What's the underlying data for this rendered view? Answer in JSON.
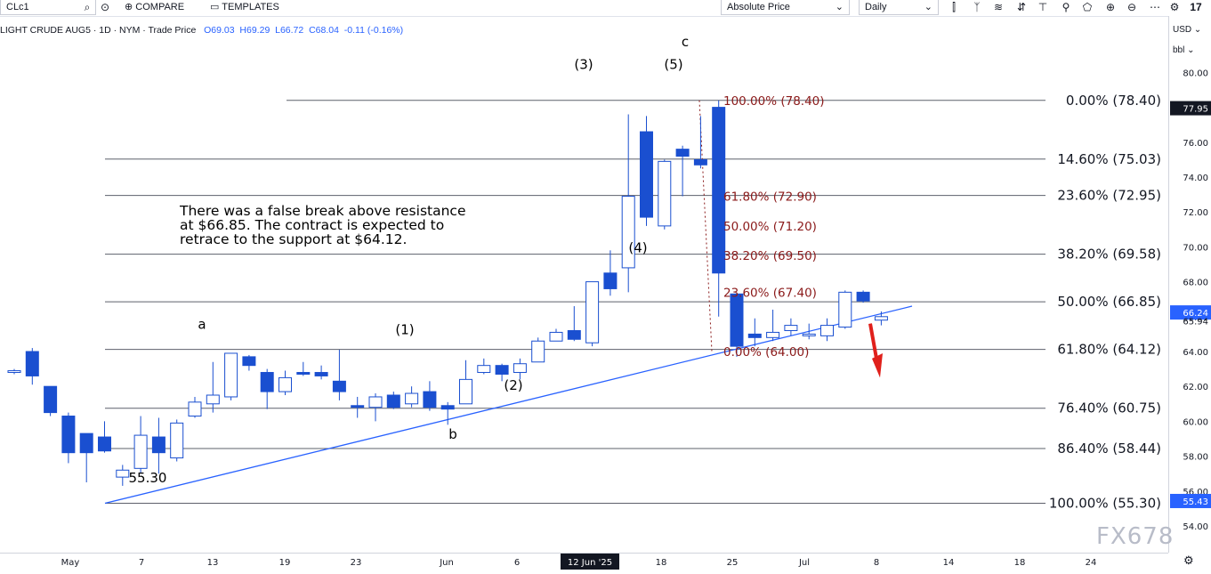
{
  "toolbar": {
    "symbol": "CLc1",
    "compare_label": "COMPARE",
    "templates_label": "TEMPLATES",
    "price_type": "Absolute Price",
    "interval": "Daily"
  },
  "legend": {
    "title": "LIGHT CRUDE AUG5 · 1D · NYM · Trade Price",
    "open": "O69.03",
    "high": "H69.29",
    "low": "L66.72",
    "close": "C68.04",
    "change": "-0.11 (-0.16%)"
  },
  "price_axis": {
    "currency": "USD",
    "unit": "bbl",
    "current_label": "77.95",
    "last_label": "66.24",
    "secondary_label": "65.94",
    "low_label": "55.43"
  },
  "annotation": {
    "line1": "There was a false break above resistance",
    "line2": "at $66.85. The contract is expected to",
    "line3": "retrace to the support at $64.12."
  },
  "watermark": "FX678",
  "colors": {
    "bull_fill": "#ffffff",
    "bull_border": "#1a4fd0",
    "bear": "#1a4fd0",
    "fib_left": "#131722",
    "fib_right": "#8b1a1a",
    "trendline": "#2962ff",
    "arrow": "#e0201b"
  },
  "chart_data": {
    "type": "candlestick",
    "ylim": [
      53.5,
      81
    ],
    "y_ticks": [
      54,
      56,
      58,
      60,
      62,
      64,
      66,
      68,
      70,
      72,
      74,
      76,
      78,
      80
    ],
    "x_tick_labels": [
      "May",
      "7",
      "13",
      "19",
      "23",
      "Jun",
      "6",
      "12 Jun '25",
      "18",
      "25",
      "Jul",
      "8",
      "14",
      "18",
      "24"
    ],
    "candles": [
      {
        "o": 62.8,
        "h": 63.0,
        "l": 62.7,
        "c": 62.9
      },
      {
        "o": 64.0,
        "h": 64.2,
        "l": 62.1,
        "c": 62.6
      },
      {
        "o": 62.0,
        "h": 62.0,
        "l": 60.3,
        "c": 60.5
      },
      {
        "o": 60.3,
        "h": 60.5,
        "l": 57.6,
        "c": 58.2
      },
      {
        "o": 59.3,
        "h": 59.3,
        "l": 56.5,
        "c": 58.2
      },
      {
        "o": 59.1,
        "h": 60.0,
        "l": 58.2,
        "c": 58.3
      },
      {
        "o": 56.8,
        "h": 57.5,
        "l": 56.3,
        "c": 57.2
      },
      {
        "o": 57.3,
        "h": 60.3,
        "l": 57.0,
        "c": 59.2
      },
      {
        "o": 59.1,
        "h": 60.2,
        "l": 57.0,
        "c": 58.2
      },
      {
        "o": 57.9,
        "h": 60.1,
        "l": 57.7,
        "c": 59.9
      },
      {
        "o": 60.3,
        "h": 61.4,
        "l": 60.2,
        "c": 61.1
      },
      {
        "o": 61.0,
        "h": 63.4,
        "l": 60.5,
        "c": 61.5
      },
      {
        "o": 61.4,
        "h": 63.9,
        "l": 61.2,
        "c": 63.9
      },
      {
        "o": 63.7,
        "h": 63.8,
        "l": 62.9,
        "c": 63.2
      },
      {
        "o": 62.8,
        "h": 63.0,
        "l": 60.7,
        "c": 61.7
      },
      {
        "o": 61.7,
        "h": 62.9,
        "l": 61.5,
        "c": 62.5
      },
      {
        "o": 62.8,
        "h": 63.4,
        "l": 62.6,
        "c": 62.7
      },
      {
        "o": 62.8,
        "h": 63.2,
        "l": 62.4,
        "c": 62.6
      },
      {
        "o": 62.3,
        "h": 64.1,
        "l": 61.2,
        "c": 61.7
      },
      {
        "o": 60.9,
        "h": 61.4,
        "l": 60.2,
        "c": 60.8
      },
      {
        "o": 60.8,
        "h": 61.6,
        "l": 60.0,
        "c": 61.4
      },
      {
        "o": 61.5,
        "h": 61.7,
        "l": 60.7,
        "c": 60.8
      },
      {
        "o": 61.0,
        "h": 62.0,
        "l": 60.8,
        "c": 61.6
      },
      {
        "o": 61.7,
        "h": 62.3,
        "l": 60.6,
        "c": 60.8
      },
      {
        "o": 60.9,
        "h": 61.1,
        "l": 59.8,
        "c": 60.7
      },
      {
        "o": 61.0,
        "h": 63.5,
        "l": 61.0,
        "c": 62.4
      },
      {
        "o": 62.8,
        "h": 63.6,
        "l": 62.7,
        "c": 63.2
      },
      {
        "o": 63.2,
        "h": 63.3,
        "l": 62.3,
        "c": 62.7
      },
      {
        "o": 62.8,
        "h": 63.6,
        "l": 62.4,
        "c": 63.3
      },
      {
        "o": 63.4,
        "h": 64.8,
        "l": 63.4,
        "c": 64.6
      },
      {
        "o": 64.6,
        "h": 65.3,
        "l": 64.6,
        "c": 65.1
      },
      {
        "o": 65.2,
        "h": 66.6,
        "l": 64.6,
        "c": 64.7
      },
      {
        "o": 64.5,
        "h": 68.0,
        "l": 64.3,
        "c": 68.0
      },
      {
        "o": 68.5,
        "h": 69.8,
        "l": 67.2,
        "c": 67.6
      },
      {
        "o": 68.8,
        "h": 77.6,
        "l": 67.4,
        "c": 72.9
      },
      {
        "o": 76.6,
        "h": 77.5,
        "l": 71.2,
        "c": 71.7
      },
      {
        "o": 71.2,
        "h": 75.0,
        "l": 71.0,
        "c": 74.9
      },
      {
        "o": 75.6,
        "h": 75.8,
        "l": 72.9,
        "c": 75.2
      },
      {
        "o": 75.0,
        "h": 77.5,
        "l": 74.5,
        "c": 74.7
      },
      {
        "o": 78.0,
        "h": 78.4,
        "l": 66.0,
        "c": 68.5
      },
      {
        "o": 67.3,
        "h": 67.3,
        "l": 63.7,
        "c": 64.3
      },
      {
        "o": 65.0,
        "h": 65.9,
        "l": 64.3,
        "c": 64.8
      },
      {
        "o": 64.8,
        "h": 66.4,
        "l": 64.6,
        "c": 65.1
      },
      {
        "o": 65.2,
        "h": 65.9,
        "l": 64.9,
        "c": 65.5
      },
      {
        "o": 64.9,
        "h": 65.6,
        "l": 64.7,
        "c": 65.0
      },
      {
        "o": 64.9,
        "h": 65.9,
        "l": 64.6,
        "c": 65.5
      },
      {
        "o": 65.4,
        "h": 67.5,
        "l": 65.3,
        "c": 67.4
      },
      {
        "o": 67.4,
        "h": 67.5,
        "l": 66.8,
        "c": 66.9
      },
      {
        "o": 65.8,
        "h": 66.3,
        "l": 65.5,
        "c": 66.0
      }
    ],
    "fib_right": [
      {
        "label": "0.00% (78.40)",
        "price": 78.4
      },
      {
        "label": "14.60% (75.03)",
        "price": 75.03
      },
      {
        "label": "23.60% (72.95)",
        "price": 72.95
      },
      {
        "label": "38.20% (69.58)",
        "price": 69.58
      },
      {
        "label": "50.00% (66.85)",
        "price": 66.85
      },
      {
        "label": "61.80% (64.12)",
        "price": 64.12
      },
      {
        "label": "76.40% (60.75)",
        "price": 60.75
      },
      {
        "label": "86.40% (58.44)",
        "price": 58.44
      },
      {
        "label": "100.00% (55.30)",
        "price": 55.3
      }
    ],
    "fib_retrace": [
      {
        "label": "100.00% (78.40)",
        "price": 78.4
      },
      {
        "label": "61.80% (72.90)",
        "price": 72.9
      },
      {
        "label": "50.00% (71.20)",
        "price": 71.2
      },
      {
        "label": "38.20% (69.50)",
        "price": 69.5
      },
      {
        "label": "23.60% (67.40)",
        "price": 67.4
      },
      {
        "label": "0.00% (64.00)",
        "price": 64.0
      }
    ],
    "wave_labels": [
      {
        "text": "a",
        "price": 65.3
      },
      {
        "text": "(1)",
        "price": 65.0
      },
      {
        "text": "b",
        "price": 59.0
      },
      {
        "text": "(2)",
        "price": 61.8
      },
      {
        "text": "(3)",
        "price": 80.2
      },
      {
        "text": "(4)",
        "price": 69.7
      },
      {
        "text": "(5)",
        "price": 80.2
      },
      {
        "text": "c",
        "price": 81.5
      },
      {
        "text": "55.30",
        "price": 56.5
      }
    ]
  }
}
